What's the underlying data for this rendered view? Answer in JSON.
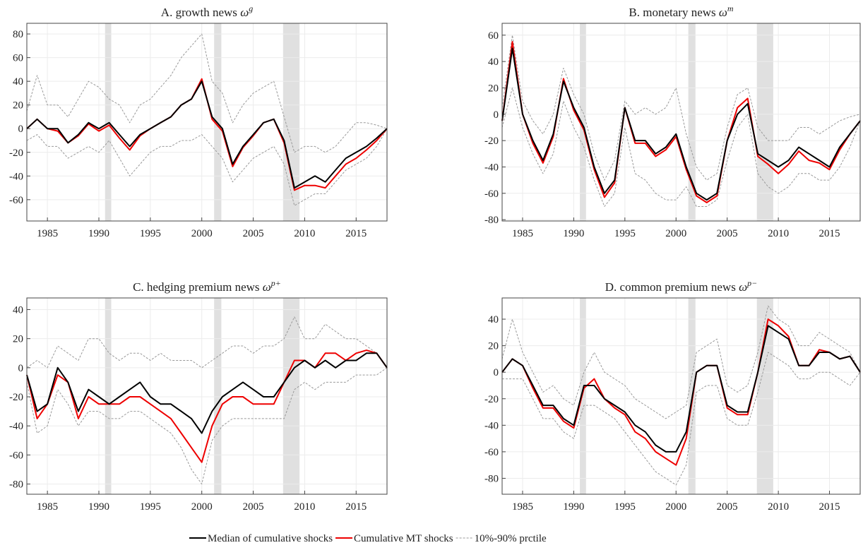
{
  "chart_data": [
    {
      "type": "line",
      "title": "A. growth news",
      "symbol": "ω",
      "superscript": "g",
      "x": [
        1983,
        1984,
        1985,
        1986,
        1987,
        1988,
        1989,
        1990,
        1991,
        1992,
        1993,
        1994,
        1995,
        1996,
        1997,
        1998,
        1999,
        2000,
        2001,
        2002,
        2003,
        2004,
        2005,
        2006,
        2007,
        2008,
        2009,
        2010,
        2011,
        2012,
        2013,
        2014,
        2015,
        2016,
        2017,
        2018
      ],
      "xlim": [
        1983,
        2018
      ],
      "xticks": [
        1985,
        1990,
        1995,
        2000,
        2005,
        2010,
        2015
      ],
      "ylim": [
        -78,
        89
      ],
      "yticks": [
        -60,
        -40,
        -20,
        0,
        20,
        40,
        60,
        80
      ],
      "grid": true,
      "series": [
        {
          "name": "Median of cumulative shocks",
          "color": "#000000",
          "values": [
            0,
            8,
            0,
            0,
            -12,
            -5,
            5,
            0,
            5,
            -5,
            -15,
            -5,
            0,
            5,
            10,
            20,
            25,
            40,
            10,
            0,
            -30,
            -15,
            -5,
            5,
            8,
            -10,
            -50,
            -45,
            -40,
            -45,
            -35,
            -25,
            -20,
            -15,
            -8,
            0
          ]
        },
        {
          "name": "Cumulative MT shocks",
          "color": "#ee0000",
          "values": [
            0,
            8,
            0,
            -2,
            -12,
            -6,
            4,
            -2,
            3,
            -8,
            -18,
            -6,
            0,
            5,
            10,
            20,
            25,
            42,
            8,
            -2,
            -32,
            -16,
            -6,
            5,
            8,
            -12,
            -52,
            -48,
            -48,
            -50,
            -40,
            -30,
            -25,
            -18,
            -10,
            0
          ]
        },
        {
          "name": "10%-90% prctile",
          "color": "#999999",
          "dashed": true,
          "upper": [
            15,
            45,
            20,
            20,
            10,
            25,
            40,
            35,
            25,
            20,
            5,
            20,
            25,
            35,
            45,
            60,
            70,
            80,
            40,
            30,
            5,
            20,
            30,
            35,
            40,
            10,
            -20,
            -15,
            -15,
            -20,
            -15,
            -5,
            5,
            5,
            3,
            0
          ],
          "lower": [
            -10,
            -5,
            -15,
            -15,
            -25,
            -20,
            -15,
            -20,
            -10,
            -25,
            -40,
            -30,
            -20,
            -15,
            -15,
            -10,
            -10,
            -5,
            -15,
            -25,
            -45,
            -35,
            -25,
            -20,
            -15,
            -30,
            -65,
            -60,
            -55,
            -55,
            -45,
            -35,
            -30,
            -25,
            -15,
            0
          ]
        }
      ]
    },
    {
      "type": "line",
      "title": "B. monetary news",
      "symbol": "ω",
      "superscript": "m",
      "x": [
        1983,
        1984,
        1985,
        1986,
        1987,
        1988,
        1989,
        1990,
        1991,
        1992,
        1993,
        1994,
        1995,
        1996,
        1997,
        1998,
        1999,
        2000,
        2001,
        2002,
        2003,
        2004,
        2005,
        2006,
        2007,
        2008,
        2009,
        2010,
        2011,
        2012,
        2013,
        2014,
        2015,
        2016,
        2017,
        2018
      ],
      "xlim": [
        1983,
        2018
      ],
      "xticks": [
        1985,
        1990,
        1995,
        2000,
        2005,
        2010,
        2015
      ],
      "ylim": [
        -81,
        69
      ],
      "yticks": [
        -80,
        -60,
        -40,
        -20,
        0,
        20,
        40,
        60
      ],
      "grid": true,
      "series": [
        {
          "color": "#000000",
          "values": [
            -5,
            50,
            0,
            -20,
            -35,
            -15,
            25,
            5,
            -10,
            -40,
            -60,
            -50,
            5,
            -20,
            -20,
            -30,
            -25,
            -15,
            -40,
            -60,
            -65,
            -60,
            -20,
            0,
            8,
            -30,
            -35,
            -40,
            -35,
            -25,
            -30,
            -35,
            -40,
            -25,
            -15,
            -5
          ]
        },
        {
          "color": "#ee0000",
          "values": [
            -5,
            55,
            0,
            -22,
            -37,
            -17,
            27,
            3,
            -12,
            -42,
            -63,
            -52,
            5,
            -22,
            -22,
            -32,
            -27,
            -17,
            -42,
            -62,
            -67,
            -62,
            -20,
            5,
            12,
            -32,
            -38,
            -45,
            -38,
            -28,
            -35,
            -37,
            -42,
            -27,
            -15,
            -5
          ]
        },
        {
          "color": "#999999",
          "dashed": true,
          "upper": [
            5,
            60,
            10,
            -5,
            -15,
            0,
            35,
            15,
            0,
            -30,
            -50,
            -35,
            10,
            0,
            5,
            0,
            5,
            20,
            -15,
            -40,
            -50,
            -45,
            -10,
            15,
            20,
            -10,
            -20,
            -20,
            -20,
            -10,
            -10,
            -15,
            -10,
            -5,
            -2,
            0
          ],
          "lower": [
            -10,
            20,
            -10,
            -30,
            -45,
            -30,
            10,
            -10,
            -25,
            -50,
            -70,
            -60,
            -10,
            -45,
            -50,
            -60,
            -65,
            -65,
            -55,
            -70,
            -70,
            -65,
            -35,
            -10,
            0,
            -45,
            -55,
            -60,
            -55,
            -45,
            -45,
            -50,
            -50,
            -40,
            -25,
            -5
          ]
        }
      ]
    },
    {
      "type": "line",
      "title": "C. hedging premium news",
      "symbol": "ω",
      "superscript": "p+",
      "x": [
        1983,
        1984,
        1985,
        1986,
        1987,
        1988,
        1989,
        1990,
        1991,
        1992,
        1993,
        1994,
        1995,
        1996,
        1997,
        1998,
        1999,
        2000,
        2001,
        2002,
        2003,
        2004,
        2005,
        2006,
        2007,
        2008,
        2009,
        2010,
        2011,
        2012,
        2013,
        2014,
        2015,
        2016,
        2017,
        2018
      ],
      "xlim": [
        1983,
        2018
      ],
      "xticks": [
        1985,
        1990,
        1995,
        2000,
        2005,
        2010,
        2015
      ],
      "ylim": [
        -87,
        48
      ],
      "yticks": [
        -80,
        -60,
        -40,
        -20,
        0,
        20,
        40
      ],
      "grid": true,
      "series": [
        {
          "color": "#000000",
          "values": [
            -5,
            -30,
            -25,
            0,
            -10,
            -30,
            -15,
            -20,
            -25,
            -20,
            -15,
            -10,
            -20,
            -25,
            -25,
            -30,
            -35,
            -45,
            -30,
            -20,
            -15,
            -10,
            -15,
            -20,
            -20,
            -10,
            0,
            5,
            0,
            5,
            0,
            5,
            5,
            10,
            10,
            0
          ]
        },
        {
          "color": "#ee0000",
          "values": [
            -5,
            -35,
            -25,
            -5,
            -10,
            -35,
            -20,
            -25,
            -25,
            -25,
            -20,
            -20,
            -25,
            -30,
            -35,
            -45,
            -55,
            -65,
            -40,
            -25,
            -20,
            -20,
            -25,
            -25,
            -25,
            -10,
            5,
            5,
            0,
            10,
            10,
            5,
            10,
            12,
            10,
            0
          ]
        },
        {
          "color": "#999999",
          "dashed": true,
          "upper": [
            0,
            5,
            0,
            15,
            10,
            5,
            20,
            20,
            10,
            5,
            10,
            10,
            5,
            10,
            5,
            5,
            5,
            0,
            5,
            10,
            15,
            15,
            10,
            15,
            15,
            20,
            35,
            20,
            20,
            30,
            25,
            20,
            20,
            15,
            10,
            0
          ],
          "lower": [
            -10,
            -45,
            -40,
            -15,
            -25,
            -40,
            -30,
            -30,
            -35,
            -35,
            -30,
            -30,
            -35,
            -40,
            -45,
            -55,
            -70,
            -80,
            -50,
            -40,
            -35,
            -35,
            -35,
            -35,
            -35,
            -35,
            -15,
            -10,
            -15,
            -10,
            -10,
            -10,
            -5,
            -5,
            -5,
            0
          ]
        }
      ]
    },
    {
      "type": "line",
      "title": "D. common premium news",
      "symbol": "ω",
      "superscript": "p−",
      "x": [
        1983,
        1984,
        1985,
        1986,
        1987,
        1988,
        1989,
        1990,
        1991,
        1992,
        1993,
        1994,
        1995,
        1996,
        1997,
        1998,
        1999,
        2000,
        2001,
        2002,
        2003,
        2004,
        2005,
        2006,
        2007,
        2008,
        2009,
        2010,
        2011,
        2012,
        2013,
        2014,
        2015,
        2016,
        2017,
        2018
      ],
      "xlim": [
        1983,
        2018
      ],
      "xticks": [
        1985,
        1990,
        1995,
        2000,
        2005,
        2010,
        2015
      ],
      "ylim": [
        -92,
        56
      ],
      "yticks": [
        -80,
        -60,
        -40,
        -20,
        0,
        20,
        40
      ],
      "grid": true,
      "series": [
        {
          "color": "#000000",
          "values": [
            0,
            10,
            5,
            -10,
            -25,
            -25,
            -35,
            -40,
            -10,
            -10,
            -20,
            -25,
            -30,
            -40,
            -45,
            -55,
            -60,
            -60,
            -45,
            0,
            5,
            5,
            -25,
            -30,
            -30,
            0,
            35,
            30,
            25,
            5,
            5,
            15,
            15,
            10,
            12,
            0
          ]
        },
        {
          "color": "#ee0000",
          "values": [
            0,
            10,
            5,
            -12,
            -27,
            -27,
            -37,
            -42,
            -12,
            -5,
            -20,
            -27,
            -32,
            -45,
            -50,
            -60,
            -65,
            -70,
            -50,
            0,
            5,
            5,
            -27,
            -32,
            -32,
            0,
            40,
            35,
            27,
            5,
            5,
            17,
            15,
            10,
            12,
            0
          ]
        },
        {
          "color": "#999999",
          "dashed": true,
          "upper": [
            10,
            40,
            15,
            0,
            -15,
            -10,
            -20,
            -25,
            0,
            15,
            0,
            -5,
            -10,
            -20,
            -25,
            -30,
            -35,
            -30,
            -25,
            15,
            20,
            25,
            -10,
            -15,
            -10,
            15,
            50,
            40,
            35,
            20,
            20,
            30,
            25,
            20,
            15,
            0
          ],
          "lower": [
            -5,
            -5,
            -5,
            -20,
            -35,
            -35,
            -45,
            -50,
            -25,
            -25,
            -30,
            -35,
            -45,
            -55,
            -65,
            -75,
            -80,
            -85,
            -70,
            -15,
            -10,
            -10,
            -35,
            -40,
            -40,
            -15,
            15,
            10,
            5,
            -5,
            -5,
            0,
            0,
            -5,
            -10,
            0
          ]
        }
      ]
    }
  ],
  "recessions": [
    [
      1990.6,
      1991.2
    ],
    [
      2001.2,
      2001.9
    ],
    [
      2007.9,
      2009.5
    ]
  ]
}
